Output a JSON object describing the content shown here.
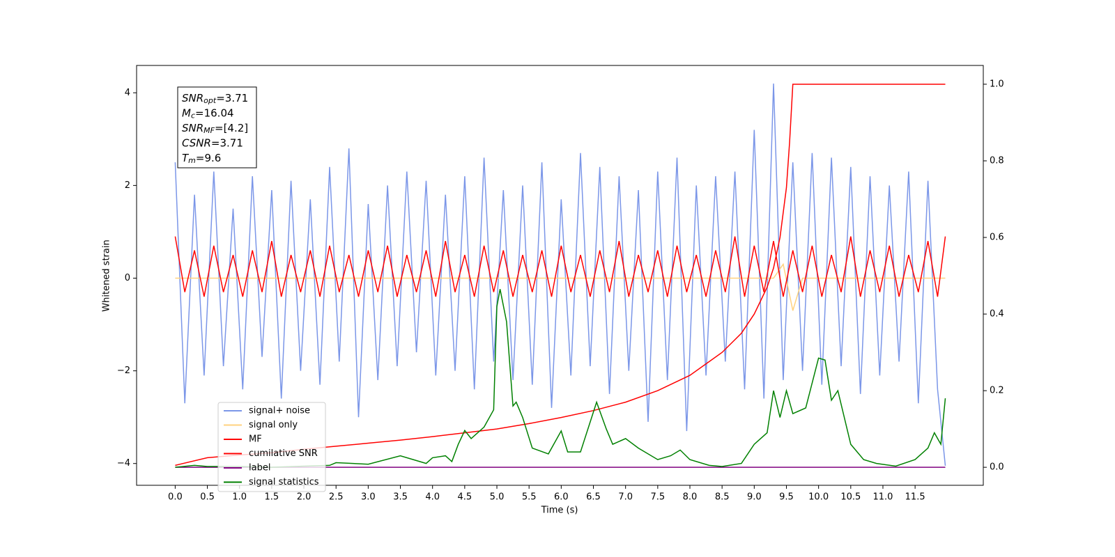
{
  "chart_data": {
    "type": "line",
    "xlabel": "Time (s)",
    "ylabel": "Whitened strain",
    "xlim": [
      -0.6,
      12.56
    ],
    "ylim": [
      -4.47,
      4.59
    ],
    "y2lim": [
      -0.047,
      1.049
    ],
    "xticks": [
      {
        "value": 0,
        "label": "0.0"
      },
      0.5,
      {
        "value": 1,
        "label": "1.0"
      },
      1.5,
      {
        "value": 2,
        "label": "2.0"
      },
      2.5,
      {
        "value": 3,
        "label": "3.0"
      },
      3.5,
      {
        "value": 4,
        "label": "4.0"
      },
      4.5,
      {
        "value": 5,
        "label": "5.0"
      },
      5.5,
      {
        "value": 6,
        "label": "6.0"
      },
      6.5,
      {
        "value": 7,
        "label": "7.0"
      },
      7.5,
      {
        "value": 8,
        "label": "8.0"
      },
      8.5,
      {
        "value": 9,
        "label": "9.0"
      },
      9.5,
      {
        "value": 10,
        "label": "10.0"
      },
      10.5,
      {
        "value": 11,
        "label": "11.0"
      },
      11.5
    ],
    "yticks": [
      {
        "value": -4,
        "label": "−4"
      },
      {
        "value": -2,
        "label": "−2"
      },
      0,
      2,
      4
    ],
    "y2ticks": [
      {
        "value": 0,
        "label": "0.0"
      },
      0.2,
      0.4,
      0.6,
      0.8,
      {
        "value": 1,
        "label": "1.0"
      }
    ],
    "legend": "lower left",
    "annotation": [
      {
        "base": "SNR",
        "sub": "opt",
        "text": "=3.71"
      },
      {
        "base": "M",
        "sub": "c",
        "text": "=16.04"
      },
      {
        "base": "SNR",
        "sub": "MF",
        "text": "=[4.2]"
      },
      {
        "base": "CSNR",
        "text": "=3.71"
      },
      {
        "base": "T",
        "sub": "m",
        "text": "=9.6"
      }
    ],
    "x": [
      0,
      0.15,
      0.3,
      0.45,
      0.6,
      0.75,
      0.9,
      1.05,
      1.2,
      1.35,
      1.5,
      1.65,
      1.8,
      1.95,
      2.1,
      2.25,
      2.4,
      2.55,
      2.7,
      2.85,
      3,
      3.15,
      3.3,
      3.45,
      3.6,
      3.75,
      3.9,
      4.05,
      4.2,
      4.35,
      4.5,
      4.65,
      4.8,
      4.95,
      5.1,
      5.25,
      5.4,
      5.55,
      5.7,
      5.85,
      6,
      6.15,
      6.3,
      6.45,
      6.6,
      6.75,
      6.9,
      7.05,
      7.2,
      7.35,
      7.5,
      7.65,
      7.8,
      7.95,
      8.1,
      8.25,
      8.4,
      8.55,
      8.7,
      8.85,
      9,
      9.15,
      9.3,
      9.45,
      9.6,
      9.75,
      9.9,
      10.05,
      10.2,
      10.35,
      10.5,
      10.65,
      10.8,
      10.95,
      11.1,
      11.25,
      11.4,
      11.55,
      11.7,
      11.85,
      11.97
    ],
    "series": [
      {
        "name": "signal+ noise",
        "color": "#7b96e8",
        "values": [
          2.5,
          -2.7,
          1.8,
          -2.1,
          2.3,
          -1.9,
          1.5,
          -2.4,
          2.2,
          -1.7,
          1.9,
          -2.6,
          2.1,
          -2.0,
          1.7,
          -2.3,
          2.4,
          -1.8,
          2.8,
          -3.0,
          1.6,
          -2.2,
          2.0,
          -1.9,
          2.3,
          -1.6,
          2.1,
          -2.1,
          1.8,
          -2.0,
          2.2,
          -2.4,
          2.6,
          -1.8,
          1.9,
          -2.2,
          2.0,
          -2.3,
          2.5,
          -2.8,
          1.7,
          -2.1,
          2.7,
          -1.9,
          2.4,
          -2.5,
          2.2,
          -2.0,
          1.9,
          -3.1,
          2.3,
          -2.2,
          2.6,
          -3.3,
          2.0,
          -2.1,
          2.2,
          -1.8,
          2.3,
          -2.4,
          3.2,
          -2.6,
          4.2,
          -2.2,
          2.5,
          -2.0,
          2.7,
          -2.3,
          2.6,
          -1.9,
          2.4,
          -2.5,
          2.2,
          -2.1,
          2.0,
          -1.8,
          2.3,
          -2.7,
          2.1,
          -2.4,
          -4.05
        ]
      },
      {
        "name": "signal only",
        "color": "#ffd27f",
        "values": [
          0,
          0,
          0,
          0,
          0,
          0,
          0,
          0,
          0,
          0,
          0,
          0,
          0,
          0,
          0,
          0,
          0,
          0,
          0,
          0,
          0,
          0,
          0,
          0,
          0,
          0,
          0,
          0,
          0,
          0,
          0,
          0,
          0,
          0,
          0,
          0,
          0,
          0,
          0,
          0,
          0,
          0,
          0,
          0,
          0,
          0,
          0,
          0,
          0,
          0,
          0,
          0,
          0,
          0,
          0,
          0,
          0,
          0,
          0,
          0,
          0,
          0,
          0,
          0.3,
          -0.7,
          0,
          0,
          0,
          0,
          0,
          0,
          0,
          0,
          0,
          0,
          0,
          0,
          0,
          0,
          0,
          0
        ]
      },
      {
        "name": "MF",
        "color": "#ff0000",
        "values": [
          0.9,
          -0.3,
          0.6,
          -0.4,
          0.7,
          -0.3,
          0.5,
          -0.4,
          0.6,
          -0.3,
          0.8,
          -0.4,
          0.5,
          -0.3,
          0.6,
          -0.4,
          0.7,
          -0.3,
          0.5,
          -0.4,
          0.6,
          -0.3,
          0.7,
          -0.4,
          0.5,
          -0.3,
          0.6,
          -0.4,
          0.8,
          -0.3,
          0.5,
          -0.4,
          0.7,
          -0.3,
          0.6,
          -0.4,
          0.5,
          -0.3,
          0.6,
          -0.4,
          0.7,
          -0.3,
          0.5,
          -0.4,
          0.6,
          -0.3,
          0.8,
          -0.4,
          0.5,
          -0.3,
          0.6,
          -0.4,
          0.7,
          -0.3,
          0.5,
          -0.4,
          0.6,
          -0.3,
          0.9,
          -0.4,
          0.7,
          -0.3,
          0.8,
          -0.4,
          0.6,
          -0.3,
          0.7,
          -0.4,
          0.5,
          -0.3,
          0.9,
          -0.4,
          0.6,
          -0.3,
          0.7,
          -0.4,
          0.5,
          -0.3,
          0.8,
          -0.4,
          0.9
        ]
      },
      {
        "name": "cumilative SNR",
        "color": "#ff0000",
        "axis": "y2",
        "x": [
          0,
          0.5,
          1,
          1.5,
          2,
          2.5,
          3,
          3.5,
          4,
          4.5,
          5,
          5.5,
          6,
          6.5,
          7,
          7.5,
          8,
          8.5,
          8.8,
          9,
          9.2,
          9.3,
          9.4,
          9.5,
          9.55,
          9.6,
          10,
          10.5,
          11,
          11.5,
          11.97
        ],
        "values": [
          0.005,
          0.025,
          0.032,
          0.038,
          0.047,
          0.055,
          0.063,
          0.071,
          0.08,
          0.09,
          0.1,
          0.114,
          0.13,
          0.148,
          0.17,
          0.2,
          0.24,
          0.3,
          0.35,
          0.4,
          0.47,
          0.52,
          0.6,
          0.73,
          0.85,
          1.0,
          1.0,
          1.0,
          1.0,
          1.0,
          1.0
        ]
      },
      {
        "name": "label",
        "color": "#800080",
        "axis": "y2",
        "x": [
          0,
          11.97
        ],
        "values": [
          0,
          0
        ]
      },
      {
        "name": "signal statistics",
        "color": "#008000",
        "axis": "y2",
        "x": [
          0,
          0.3,
          0.5,
          1.0,
          1.5,
          2.0,
          2.4,
          2.5,
          3.0,
          3.5,
          3.7,
          3.9,
          4.0,
          4.2,
          4.3,
          4.4,
          4.5,
          4.6,
          4.8,
          4.95,
          5.0,
          5.05,
          5.15,
          5.25,
          5.3,
          5.4,
          5.55,
          5.8,
          6.0,
          6.1,
          6.3,
          6.55,
          6.7,
          6.8,
          7.0,
          7.2,
          7.5,
          7.7,
          7.85,
          8.0,
          8.3,
          8.5,
          8.8,
          9.0,
          9.2,
          9.3,
          9.4,
          9.5,
          9.6,
          9.8,
          10.0,
          10.1,
          10.2,
          10.3,
          10.5,
          10.7,
          10.9,
          11.2,
          11.5,
          11.7,
          11.8,
          11.9,
          11.97
        ],
        "values": [
          0,
          0.005,
          0.002,
          0.002,
          0,
          0.003,
          0.005,
          0.012,
          0.008,
          0.03,
          0.02,
          0.01,
          0.025,
          0.03,
          0.015,
          0.06,
          0.096,
          0.075,
          0.105,
          0.15,
          0.42,
          0.465,
          0.38,
          0.16,
          0.17,
          0.13,
          0.05,
          0.035,
          0.095,
          0.04,
          0.04,
          0.17,
          0.1,
          0.06,
          0.075,
          0.05,
          0.02,
          0.03,
          0.045,
          0.02,
          0.005,
          0.002,
          0.01,
          0.06,
          0.09,
          0.2,
          0.13,
          0.2,
          0.14,
          0.155,
          0.285,
          0.28,
          0.175,
          0.2,
          0.06,
          0.02,
          0.01,
          0.003,
          0.02,
          0.05,
          0.09,
          0.06,
          0.18
        ]
      }
    ]
  }
}
